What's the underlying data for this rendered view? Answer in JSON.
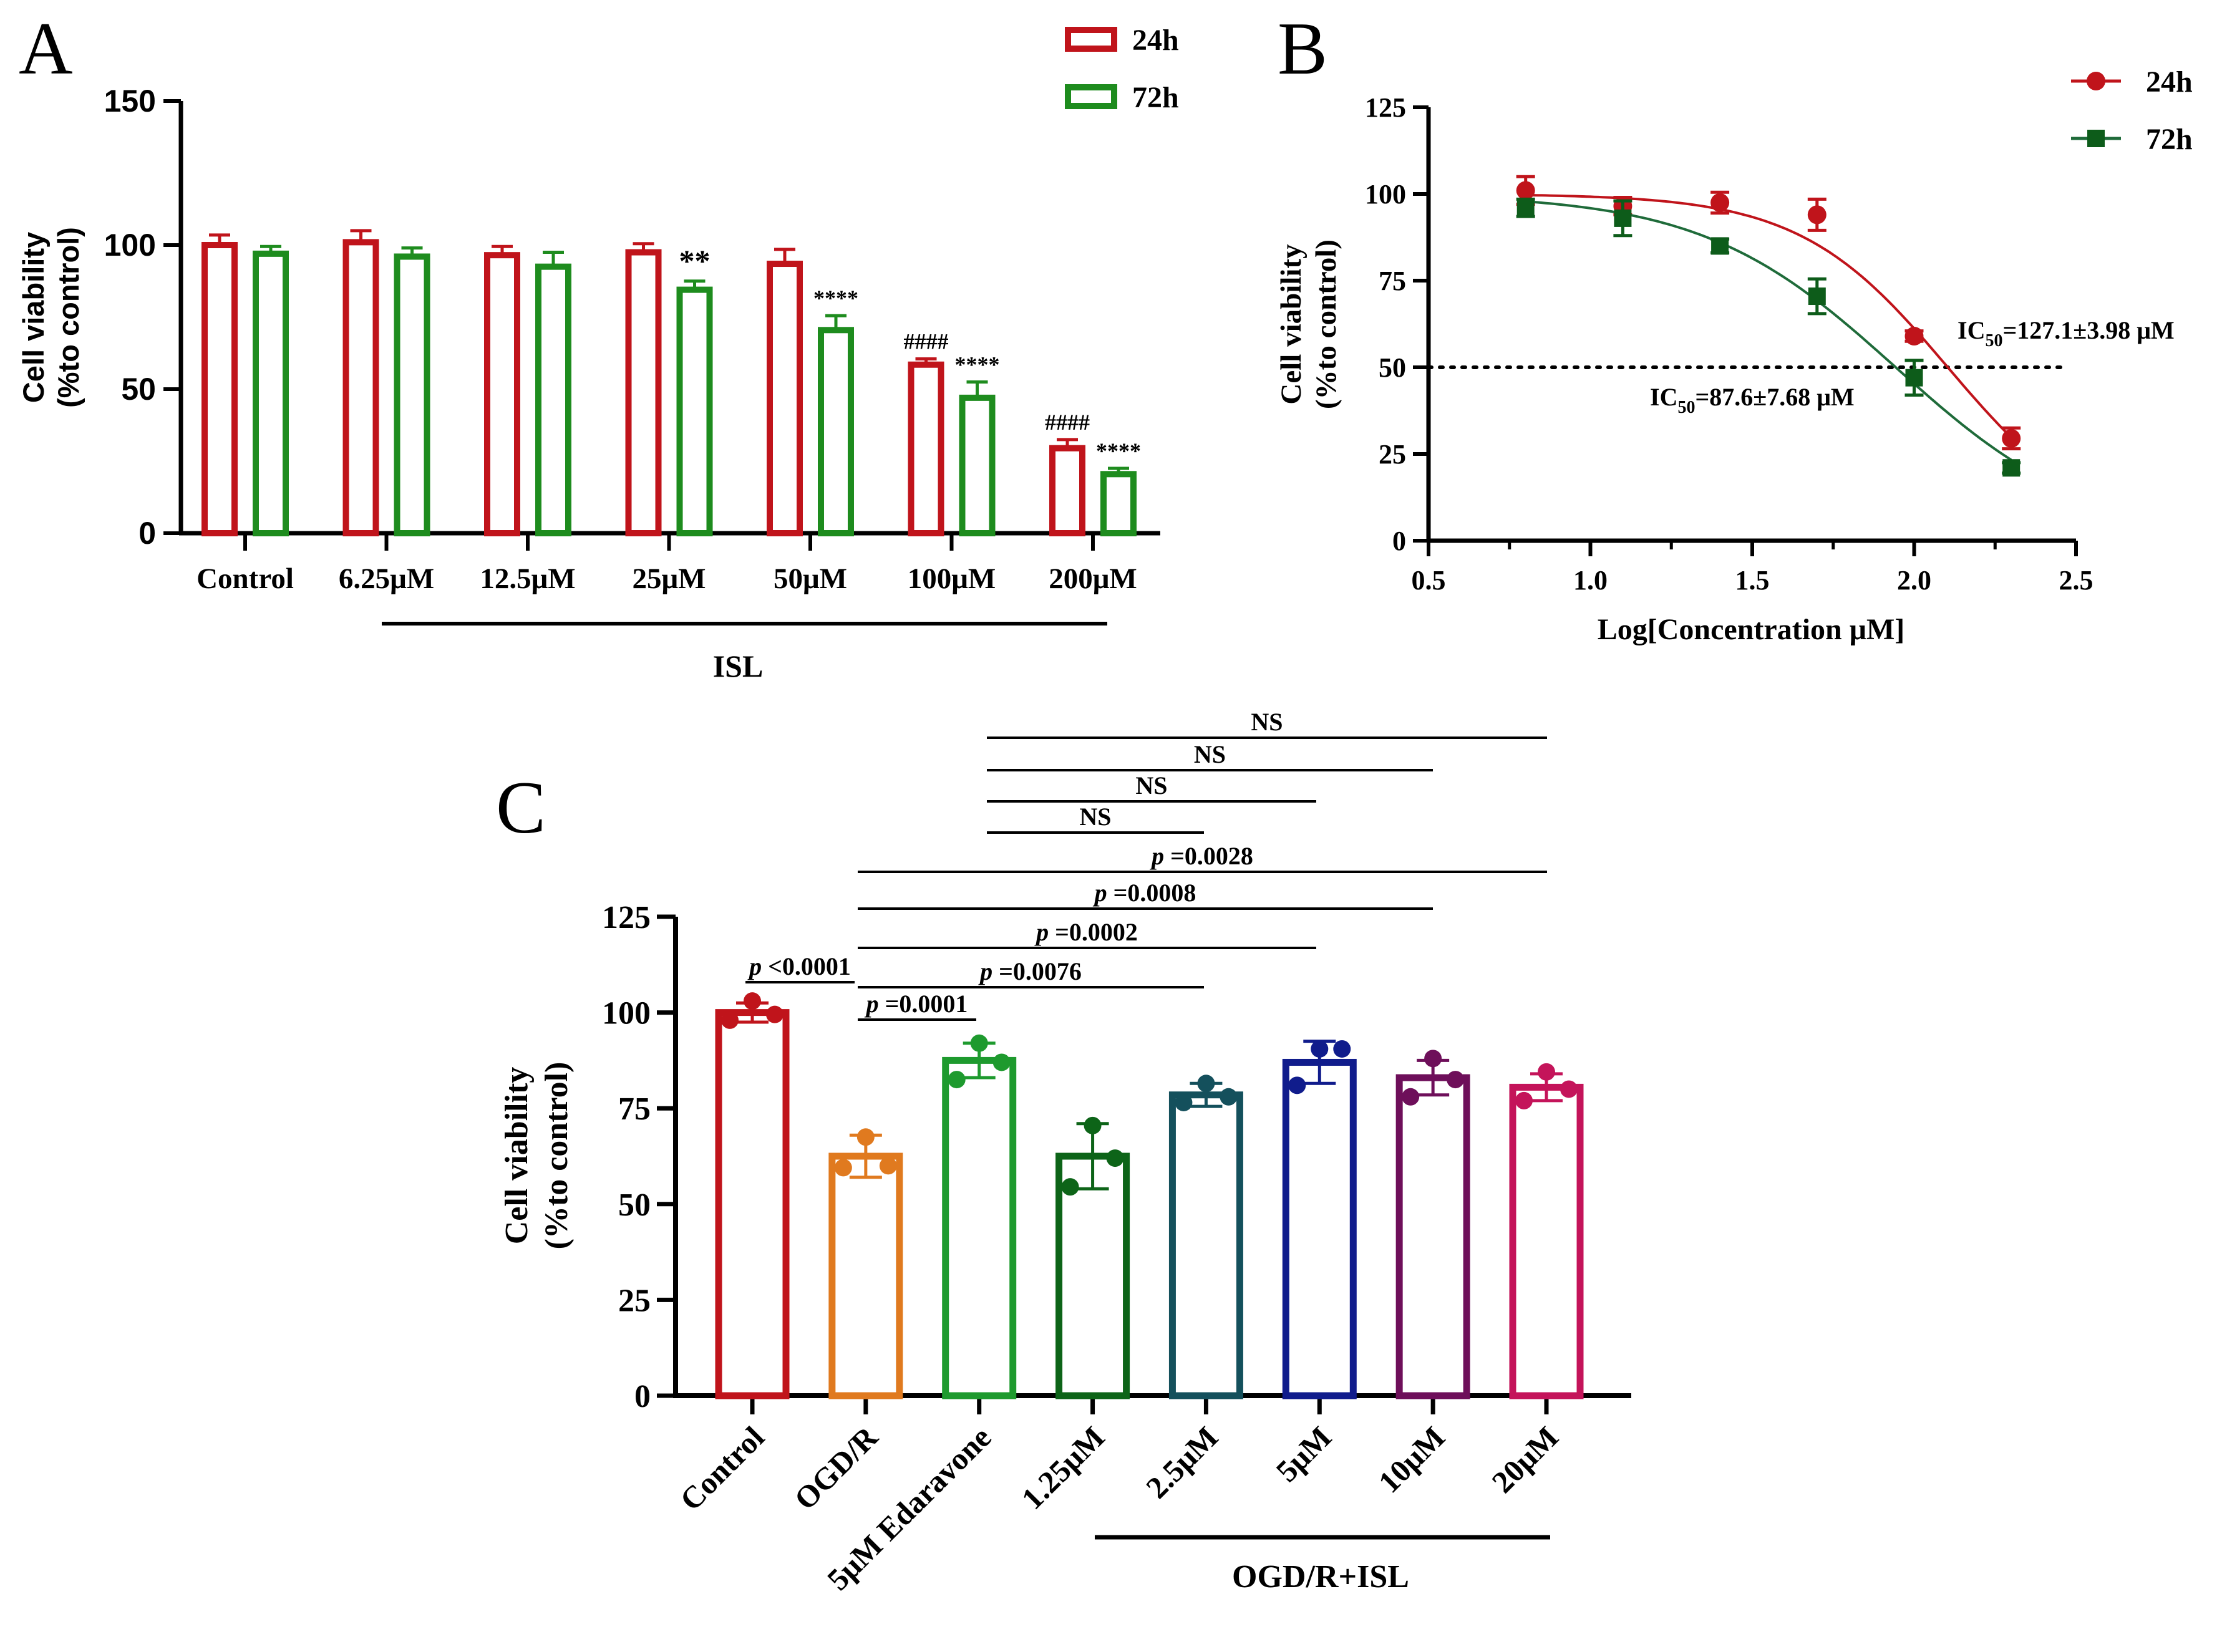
{
  "colors": {
    "red24": "#c0141b",
    "green72": "#1e8c1e",
    "curveRed": "#c0141b",
    "curveGreen": "#1f6b3a",
    "markerGreen": "#0d5c1a",
    "C": [
      "#c0141b",
      "#e07a1f",
      "#1e9a2e",
      "#0d6418",
      "#14505c",
      "#101c8c",
      "#6e0f5a",
      "#c4145a"
    ]
  },
  "chart_data": [
    {
      "type": "bar",
      "panel": "A",
      "title": "",
      "ylabel_line1": "Cell viability",
      "ylabel_line2": "(%to control)",
      "ylim": [
        0,
        150
      ],
      "yticks": [
        "0",
        "50",
        "100",
        "150"
      ],
      "categories": [
        "Control",
        "6.25μM",
        "12.5μM",
        "25μM",
        "50μM",
        "100μM",
        "200μM"
      ],
      "group_label": "ISL",
      "legend": [
        "24h",
        "72h"
      ],
      "series": [
        {
          "name": "24h",
          "values": [
            100,
            101,
            96.5,
            97.5,
            93.5,
            58.5,
            29.5
          ],
          "errors": [
            3.5,
            4,
            3,
            3,
            5,
            2,
            3
          ]
        },
        {
          "name": "72h",
          "values": [
            97,
            96,
            92.5,
            84.5,
            70.5,
            47,
            20.5
          ],
          "errors": [
            2.5,
            3,
            5,
            3,
            5,
            5.5,
            2
          ]
        }
      ],
      "annotations": [
        {
          "label": "**",
          "category": 3,
          "series": 1
        },
        {
          "label": "****",
          "category": 4,
          "series": 1
        },
        {
          "label": "####",
          "category": 5,
          "series": 0
        },
        {
          "label": "****",
          "category": 5,
          "series": 1
        },
        {
          "label": "####",
          "category": 6,
          "series": 0
        },
        {
          "label": "****",
          "category": 6,
          "series": 1
        }
      ]
    },
    {
      "type": "scatter",
      "panel": "B",
      "xlabel": "Log[Concentration μM]",
      "ylabel_line1": "Cell viability",
      "ylabel_line2": "(%to control)",
      "xlim": [
        0.5,
        2.5
      ],
      "ylim": [
        0,
        125
      ],
      "xticks": [
        "0.5",
        "1.0",
        "1.5",
        "2.0",
        "2.5"
      ],
      "yticks": [
        "0",
        "25",
        "50",
        "75",
        "100",
        "125"
      ],
      "legend": [
        "24h",
        "72h"
      ],
      "series": [
        {
          "name": "24h",
          "x": [
            0.8,
            1.1,
            1.4,
            1.7,
            2.0,
            2.3
          ],
          "y": [
            101,
            96.5,
            97.5,
            94,
            59,
            29.5
          ],
          "errors": [
            4,
            2.5,
            3,
            4.5,
            1.5,
            3
          ],
          "fit": {
            "top": 100,
            "bottom": 0,
            "logIC50": 2.104,
            "hill": -1.9
          }
        },
        {
          "name": "72h",
          "x": [
            0.8,
            1.1,
            1.4,
            1.7,
            2.0,
            2.3
          ],
          "y": [
            96,
            93,
            85,
            70.5,
            47,
            21
          ],
          "errors": [
            2.5,
            5,
            2,
            5,
            5,
            1.5
          ],
          "fit": {
            "top": 100,
            "bottom": 0,
            "logIC50": 1.943,
            "hill": -1.45
          }
        }
      ],
      "reference_line_y": 50,
      "ic50_24h_prefix": "IC",
      "ic50_24h_sub": "50",
      "ic50_24h_value": "=127.1±3.98 μM",
      "ic50_72h_prefix": "IC",
      "ic50_72h_sub": "50",
      "ic50_72h_value": "=87.6±7.68 μM"
    },
    {
      "type": "bar",
      "panel": "C",
      "ylabel_line1": "Cell viability",
      "ylabel_line2": "(%to control)",
      "ylim": [
        0,
        125
      ],
      "yticks": [
        "0",
        "25",
        "50",
        "75",
        "100",
        "125"
      ],
      "categories": [
        "Control",
        "OGD/R",
        "5μM Edaravone",
        "1.25μM",
        "2.5μM",
        "5μM",
        "10μM",
        "20μM"
      ],
      "group_label": "OGD/R+ISL",
      "values": [
        100,
        62.5,
        87.5,
        62.5,
        78.5,
        87,
        83,
        80.5
      ],
      "errors": [
        2.5,
        5.5,
        4.5,
        8.5,
        3,
        5.5,
        4.5,
        3.5
      ],
      "points": [
        [
          98,
          103,
          99.5
        ],
        [
          59.5,
          67.5,
          60
        ],
        [
          82.5,
          92,
          87
        ],
        [
          54.5,
          70.5,
          62
        ],
        [
          76.5,
          81.5,
          78
        ],
        [
          81,
          90.5,
          90.5
        ],
        [
          78,
          88,
          82.5
        ],
        [
          77,
          84.5,
          80
        ]
      ],
      "comparisons": [
        {
          "label": "NS",
          "from": 2,
          "to": 7
        },
        {
          "label": "NS",
          "from": 2,
          "to": 6
        },
        {
          "label": "NS",
          "from": 2,
          "to": 5
        },
        {
          "label": "NS",
          "from": 2,
          "to": 4
        },
        {
          "p": "p",
          "label": " =0.0028",
          "from": 1,
          "to": 7
        },
        {
          "p": "p",
          "label": " =0.0008",
          "from": 1,
          "to": 6
        },
        {
          "p": "p",
          "label": " =0.0002",
          "from": 1,
          "to": 5
        },
        {
          "p": "p",
          "label": " =0.0076",
          "from": 1,
          "to": 4
        },
        {
          "p": "p",
          "label": " <0.0001",
          "from": 0,
          "to": 1
        },
        {
          "p": "p",
          "label": " =0.0001",
          "from": 1,
          "to": 2
        }
      ]
    }
  ],
  "panels": {
    "A": "A",
    "B": "B",
    "C": "C"
  }
}
